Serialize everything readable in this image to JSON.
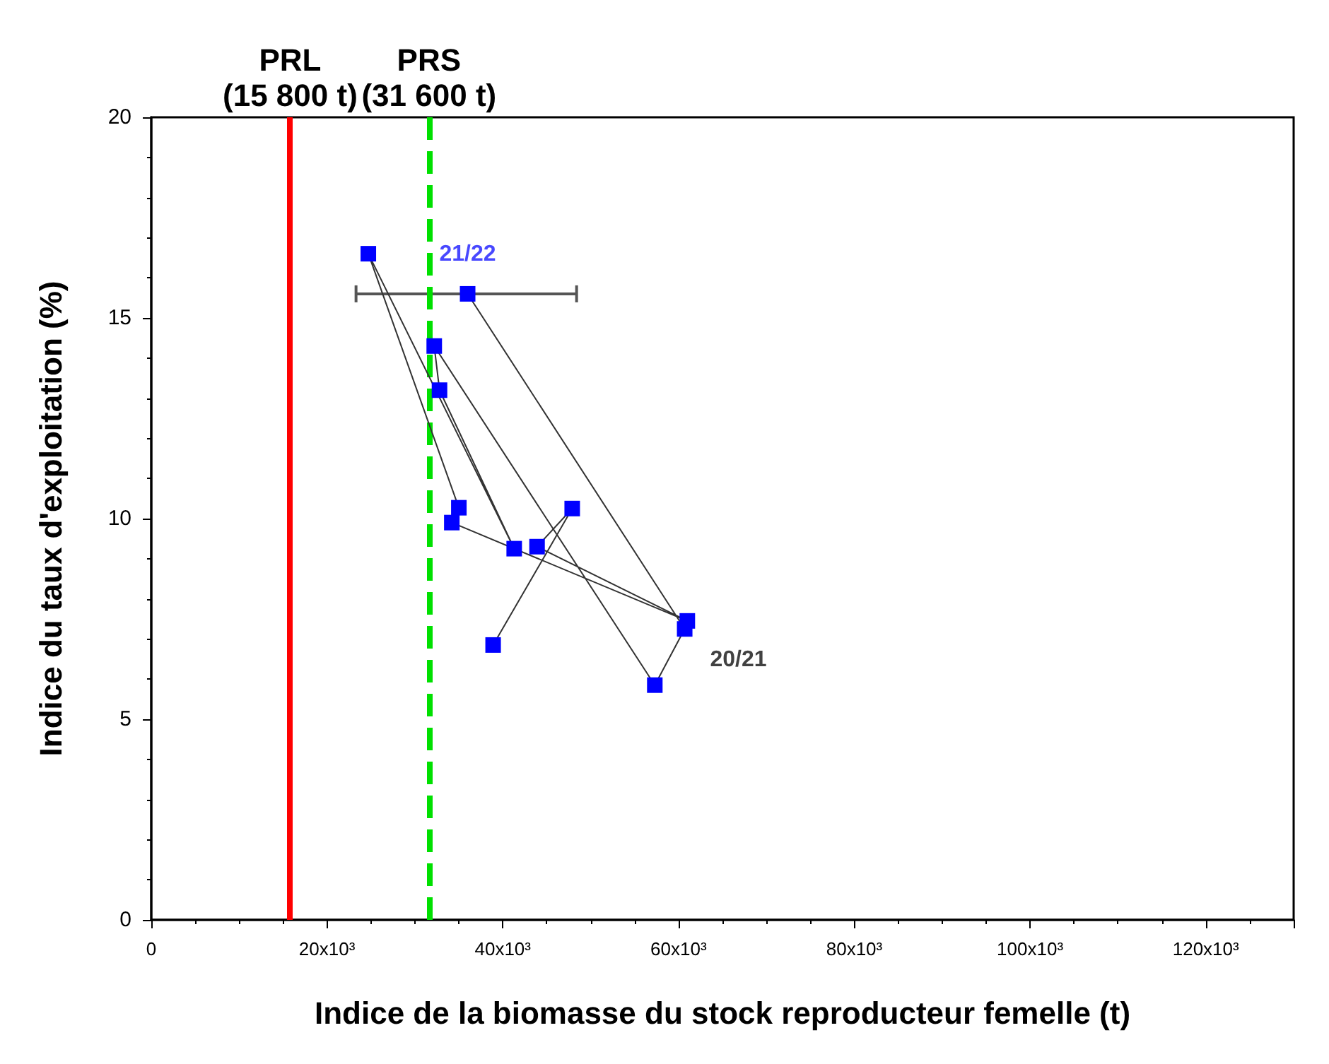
{
  "chart_data": {
    "type": "line",
    "xlabel": "Indice de la biomasse du stock reproducteur femelle (t)",
    "ylabel": "Indice du taux d'exploitation (%)",
    "series": [
      {
        "color": "#0000ff",
        "x": [
          38900,
          47900,
          43900,
          61000,
          34200,
          35000,
          24700,
          41300,
          32800,
          32200,
          57300,
          60700,
          36000
        ],
        "values": [
          6.85,
          10.25,
          9.3,
          7.45,
          9.9,
          10.27,
          16.6,
          9.25,
          13.2,
          14.3,
          5.85,
          7.25,
          15.6
        ],
        "xerrors": [
          null,
          null,
          null,
          null,
          null,
          null,
          null,
          null,
          null,
          null,
          null,
          null,
          [
            23300,
            48400
          ]
        ]
      }
    ],
    "marker": "square",
    "line_style": "solid",
    "xlim": [
      0,
      130000
    ],
    "xticks": [
      0,
      {
        "value": 20000,
        "label": "20x10³"
      },
      {
        "value": 40000,
        "label": "40x10³"
      },
      {
        "value": 60000,
        "label": "60x10³"
      },
      {
        "value": 80000,
        "label": "80x10³"
      },
      {
        "value": 100000,
        "label": "100x10³"
      },
      {
        "value": 120000,
        "label": "120x10³"
      }
    ],
    "ylim": [
      0,
      20
    ],
    "yticks": [
      0,
      5,
      10,
      15,
      20
    ],
    "grid": false,
    "ref_lines": [
      {
        "axis": "x",
        "value": 15800,
        "label": "PRL\n(15 800 t)",
        "color": "#ff0000",
        "line_style": "solid"
      },
      {
        "axis": "x",
        "value": 31600,
        "label": "PRS\n(31 600 t)",
        "color": "#00e000",
        "line_style": "dashed"
      }
    ],
    "annotations": [
      {
        "text": "21/22",
        "x": 36000,
        "y": 15.6
      },
      {
        "text": "20/21",
        "x": 60700,
        "y": 7.25
      }
    ]
  }
}
